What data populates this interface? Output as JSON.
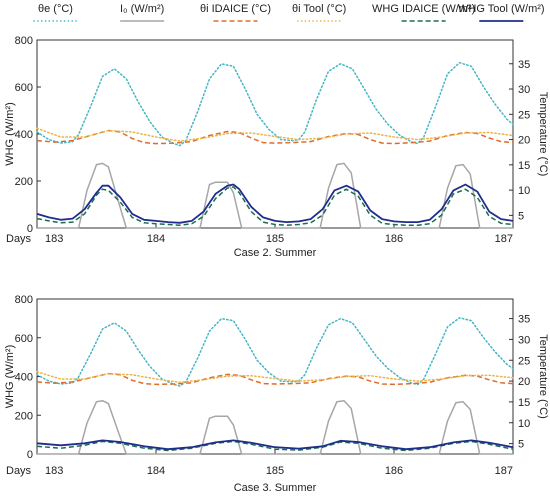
{
  "colors": {
    "theta_e": "#45b5c4",
    "I0": "#a6a6a6",
    "theta_i_idaice": "#e06c2a",
    "theta_i_tool": "#eab44a",
    "whg_idaice": "#1b6b50",
    "whg_tool": "#1f2d8c"
  },
  "legend": [
    {
      "key": "theta_e",
      "label": "θe (°C)",
      "dash": "dot"
    },
    {
      "key": "I0",
      "label": "I₀ (W/m²)",
      "dash": "solid"
    },
    {
      "key": "theta_i_idaice",
      "label": "θi IDAICE (°C)",
      "dash": "dash"
    },
    {
      "key": "theta_i_tool",
      "label": "θi Tool (°C)",
      "dash": "dot"
    },
    {
      "key": "whg_idaice",
      "label": "WHG IDAICE (W/m²)",
      "dash": "dash"
    },
    {
      "key": "whg_tool",
      "label": "WHG Tool (W/m²)",
      "dash": "solid"
    }
  ],
  "chart_data": [
    {
      "type": "line",
      "caption": "Case 2. Summer",
      "xlabel_prefix": "Days",
      "ylabel_left": "WHG (W/m²)",
      "ylabel_right": "Temperature (°C)",
      "xlim": [
        183,
        187
      ],
      "ylim_left": [
        0,
        800
      ],
      "ylim_right": [
        2.5,
        39.7
      ],
      "x_ticks": [
        "183",
        "184",
        "185",
        "186",
        "187"
      ],
      "left_ticks": [
        "0",
        "200",
        "400",
        "600",
        "800"
      ],
      "right_ticks": [
        "5",
        "10",
        "15",
        "20",
        "25",
        "30",
        "35"
      ],
      "grid": false,
      "series": [
        {
          "key": "theta_e",
          "axis": "right",
          "x": [
            183.0,
            183.1,
            183.2,
            183.3,
            183.35,
            183.45,
            183.55,
            183.65,
            183.75,
            183.85,
            183.95,
            184.05,
            184.15,
            184.2,
            184.25,
            184.35,
            184.45,
            184.55,
            184.65,
            184.75,
            184.85,
            184.95,
            185.05,
            185.15,
            185.2,
            185.25,
            185.35,
            185.45,
            185.55,
            185.65,
            185.75,
            185.85,
            185.95,
            186.05,
            186.15,
            186.2,
            186.25,
            186.35,
            186.45,
            186.55,
            186.65,
            186.75,
            186.85,
            186.95,
            187.0
          ],
          "y": [
            21.5,
            20.0,
            19.3,
            19.6,
            21.0,
            26.5,
            32.5,
            34.0,
            32.0,
            27.5,
            23.5,
            20.5,
            19.2,
            18.8,
            19.8,
            25.5,
            32.0,
            35.0,
            34.5,
            30.0,
            25.0,
            22.0,
            20.0,
            19.8,
            20.0,
            21.5,
            28.0,
            33.5,
            35.0,
            34.0,
            30.0,
            26.0,
            23.0,
            20.8,
            19.5,
            19.2,
            20.5,
            26.5,
            33.0,
            35.2,
            34.5,
            30.5,
            27.0,
            24.0,
            23.0
          ]
        },
        {
          "key": "I0",
          "axis": "left",
          "x": [
            183.0,
            183.3,
            183.35,
            183.42,
            183.5,
            183.55,
            183.6,
            183.68,
            183.75,
            184.0,
            184.3,
            184.37,
            184.45,
            184.5,
            184.6,
            184.65,
            184.72,
            185.0,
            185.3,
            185.38,
            185.45,
            185.52,
            185.58,
            185.64,
            185.72,
            186.0,
            186.3,
            186.38,
            186.45,
            186.52,
            186.58,
            186.64,
            186.72,
            187.0
          ],
          "y": [
            0,
            0,
            0,
            160,
            270,
            275,
            260,
            120,
            0,
            0,
            0,
            0,
            185,
            195,
            195,
            150,
            0,
            0,
            0,
            0,
            170,
            270,
            275,
            235,
            0,
            0,
            0,
            0,
            170,
            265,
            270,
            230,
            0,
            0
          ]
        },
        {
          "key": "theta_i_idaice",
          "axis": "right",
          "x": [
            183.0,
            183.15,
            183.3,
            183.45,
            183.6,
            183.7,
            183.8,
            183.9,
            184.0,
            184.15,
            184.3,
            184.45,
            184.6,
            184.7,
            184.8,
            184.9,
            185.0,
            185.15,
            185.3,
            185.45,
            185.6,
            185.7,
            185.8,
            185.9,
            186.0,
            186.15,
            186.3,
            186.45,
            186.6,
            186.7,
            186.8,
            186.9,
            187.0
          ],
          "y": [
            19.8,
            19.5,
            19.8,
            20.8,
            21.8,
            21.5,
            20.2,
            19.4,
            19.2,
            19.3,
            19.6,
            20.8,
            21.6,
            21.4,
            20.3,
            19.4,
            19.3,
            19.4,
            19.6,
            20.6,
            21.2,
            21.0,
            20.0,
            19.3,
            19.2,
            19.4,
            19.7,
            20.8,
            21.4,
            21.2,
            20.3,
            19.6,
            19.4
          ]
        },
        {
          "key": "theta_i_tool",
          "axis": "right",
          "x": [
            183.0,
            183.2,
            183.4,
            183.6,
            183.8,
            184.0,
            184.2,
            184.4,
            184.6,
            184.8,
            185.0,
            185.2,
            185.4,
            185.6,
            185.8,
            186.0,
            186.2,
            186.4,
            186.6,
            186.8,
            187.0
          ],
          "y": [
            22.2,
            20.5,
            20.5,
            21.8,
            21.5,
            20.5,
            19.7,
            20.3,
            21.2,
            21.3,
            20.6,
            20.0,
            20.3,
            21.1,
            21.3,
            20.5,
            20.0,
            20.5,
            21.3,
            21.4,
            20.8
          ]
        },
        {
          "key": "whg_idaice",
          "axis": "left",
          "x": [
            183.0,
            183.1,
            183.2,
            183.3,
            183.4,
            183.5,
            183.55,
            183.6,
            183.7,
            183.8,
            183.9,
            184.0,
            184.1,
            184.2,
            184.3,
            184.4,
            184.5,
            184.6,
            184.65,
            184.7,
            184.8,
            184.9,
            185.0,
            185.1,
            185.2,
            185.3,
            185.4,
            185.5,
            185.6,
            185.7,
            185.8,
            185.9,
            186.0,
            186.1,
            186.2,
            186.3,
            186.4,
            186.5,
            186.6,
            186.7,
            186.8,
            186.9,
            187.0
          ],
          "y": [
            40,
            30,
            22,
            25,
            60,
            140,
            165,
            160,
            110,
            45,
            22,
            18,
            15,
            12,
            18,
            50,
            125,
            170,
            175,
            150,
            70,
            25,
            15,
            12,
            15,
            22,
            55,
            140,
            165,
            135,
            55,
            20,
            15,
            12,
            12,
            18,
            55,
            145,
            165,
            130,
            50,
            20,
            15
          ]
        },
        {
          "key": "whg_tool",
          "axis": "left",
          "x": [
            183.0,
            183.1,
            183.2,
            183.3,
            183.4,
            183.5,
            183.55,
            183.6,
            183.7,
            183.8,
            183.9,
            184.0,
            184.1,
            184.2,
            184.3,
            184.4,
            184.5,
            184.6,
            184.65,
            184.7,
            184.8,
            184.9,
            185.0,
            185.1,
            185.2,
            185.3,
            185.4,
            185.5,
            185.6,
            185.7,
            185.8,
            185.9,
            186.0,
            186.1,
            186.2,
            186.3,
            186.4,
            186.5,
            186.6,
            186.7,
            186.8,
            186.9,
            187.0
          ],
          "y": [
            60,
            45,
            35,
            40,
            80,
            150,
            180,
            180,
            130,
            60,
            35,
            30,
            25,
            22,
            30,
            70,
            145,
            180,
            185,
            165,
            90,
            45,
            30,
            25,
            28,
            38,
            80,
            160,
            180,
            155,
            75,
            38,
            28,
            25,
            25,
            35,
            80,
            160,
            185,
            155,
            70,
            38,
            30
          ]
        }
      ]
    },
    {
      "type": "line",
      "caption": "Case 3. Summer",
      "xlabel_prefix": "Days",
      "ylabel_left": "WHG (W/m²)",
      "ylabel_right": "Temperature (°C)",
      "xlim": [
        183,
        187
      ],
      "ylim_left": [
        0,
        800
      ],
      "ylim_right": [
        2.5,
        39.7
      ],
      "x_ticks": [
        "183",
        "184",
        "185",
        "186",
        "187"
      ],
      "left_ticks": [
        "0",
        "200",
        "400",
        "600",
        "800"
      ],
      "right_ticks": [
        "5",
        "10",
        "15",
        "20",
        "25",
        "30",
        "35"
      ],
      "grid": false,
      "series": [
        {
          "key": "theta_e",
          "axis": "right",
          "x": [
            183.0,
            183.1,
            183.2,
            183.3,
            183.35,
            183.45,
            183.55,
            183.65,
            183.75,
            183.85,
            183.95,
            184.05,
            184.15,
            184.2,
            184.25,
            184.35,
            184.45,
            184.55,
            184.65,
            184.75,
            184.85,
            184.95,
            185.05,
            185.15,
            185.2,
            185.25,
            185.35,
            185.45,
            185.55,
            185.65,
            185.75,
            185.85,
            185.95,
            186.05,
            186.15,
            186.2,
            186.25,
            186.35,
            186.45,
            186.55,
            186.65,
            186.75,
            186.85,
            186.95,
            187.0
          ],
          "y": [
            21.5,
            20.0,
            19.3,
            19.6,
            21.0,
            26.5,
            32.5,
            34.0,
            32.0,
            27.5,
            23.5,
            20.5,
            19.2,
            18.8,
            19.8,
            25.5,
            32.0,
            35.0,
            34.5,
            30.0,
            25.0,
            22.0,
            20.0,
            19.8,
            20.0,
            21.5,
            28.0,
            33.5,
            35.0,
            34.0,
            30.0,
            26.0,
            23.0,
            20.8,
            19.5,
            19.2,
            20.5,
            26.5,
            33.0,
            35.2,
            34.5,
            30.5,
            27.0,
            24.0,
            23.0
          ]
        },
        {
          "key": "I0",
          "axis": "left",
          "x": [
            183.0,
            183.3,
            183.35,
            183.42,
            183.5,
            183.55,
            183.6,
            183.68,
            183.75,
            184.0,
            184.3,
            184.37,
            184.45,
            184.5,
            184.6,
            184.65,
            184.72,
            185.0,
            185.3,
            185.38,
            185.45,
            185.52,
            185.58,
            185.64,
            185.72,
            186.0,
            186.3,
            186.38,
            186.45,
            186.52,
            186.58,
            186.64,
            186.72,
            187.0
          ],
          "y": [
            0,
            0,
            0,
            160,
            270,
            275,
            260,
            120,
            0,
            0,
            0,
            0,
            185,
            195,
            195,
            150,
            0,
            0,
            0,
            0,
            170,
            270,
            275,
            235,
            0,
            0,
            0,
            0,
            170,
            265,
            270,
            230,
            0,
            0
          ]
        },
        {
          "key": "theta_i_idaice",
          "axis": "right",
          "x": [
            183.0,
            183.15,
            183.3,
            183.45,
            183.6,
            183.7,
            183.8,
            183.9,
            184.0,
            184.15,
            184.3,
            184.45,
            184.6,
            184.7,
            184.8,
            184.9,
            185.0,
            185.15,
            185.3,
            185.45,
            185.6,
            185.7,
            185.8,
            185.9,
            186.0,
            186.15,
            186.3,
            186.45,
            186.6,
            186.7,
            186.8,
            186.9,
            187.0
          ],
          "y": [
            19.8,
            19.5,
            19.8,
            20.8,
            21.8,
            21.5,
            20.2,
            19.4,
            19.2,
            19.3,
            19.6,
            20.8,
            21.6,
            21.4,
            20.3,
            19.4,
            19.3,
            19.4,
            19.6,
            20.6,
            21.2,
            21.0,
            20.0,
            19.3,
            19.2,
            19.4,
            19.7,
            20.8,
            21.4,
            21.2,
            20.3,
            19.6,
            19.4
          ]
        },
        {
          "key": "theta_i_tool",
          "axis": "right",
          "x": [
            183.0,
            183.2,
            183.4,
            183.6,
            183.8,
            184.0,
            184.2,
            184.4,
            184.6,
            184.8,
            185.0,
            185.2,
            185.4,
            185.6,
            185.8,
            186.0,
            186.2,
            186.4,
            186.6,
            186.8,
            187.0
          ],
          "y": [
            22.2,
            20.5,
            20.5,
            21.8,
            21.5,
            20.5,
            19.7,
            20.3,
            21.2,
            21.3,
            20.6,
            20.0,
            20.3,
            21.1,
            21.3,
            20.5,
            20.0,
            20.5,
            21.3,
            21.4,
            20.8
          ]
        },
        {
          "key": "whg_idaice",
          "axis": "left",
          "x": [
            183.0,
            183.2,
            183.4,
            183.55,
            183.7,
            183.9,
            184.1,
            184.3,
            184.5,
            184.65,
            184.8,
            185.0,
            185.2,
            185.4,
            185.55,
            185.7,
            185.9,
            186.1,
            186.3,
            186.5,
            186.65,
            186.8,
            187.0
          ],
          "y": [
            40,
            30,
            45,
            65,
            55,
            30,
            18,
            30,
            55,
            65,
            50,
            25,
            20,
            35,
            62,
            55,
            30,
            18,
            30,
            55,
            65,
            50,
            25
          ]
        },
        {
          "key": "whg_tool",
          "axis": "left",
          "x": [
            183.0,
            183.2,
            183.4,
            183.55,
            183.7,
            183.9,
            184.1,
            184.3,
            184.5,
            184.65,
            184.8,
            185.0,
            185.2,
            185.4,
            185.55,
            185.7,
            185.9,
            186.1,
            186.3,
            186.5,
            186.65,
            186.8,
            187.0
          ],
          "y": [
            55,
            45,
            55,
            70,
            62,
            40,
            25,
            35,
            60,
            70,
            58,
            35,
            28,
            40,
            68,
            62,
            40,
            25,
            35,
            60,
            70,
            58,
            35
          ]
        }
      ]
    }
  ]
}
